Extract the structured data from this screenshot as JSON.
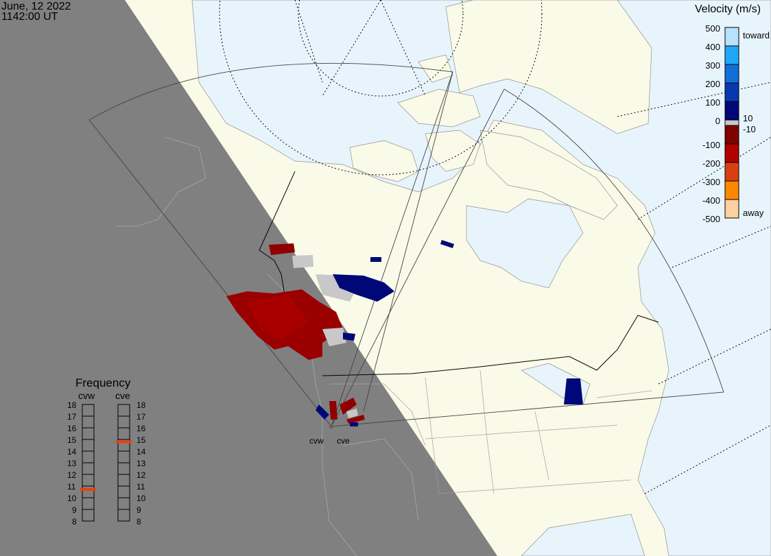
{
  "header": {
    "date": "June, 12 2022",
    "time": "1142:00 UT"
  },
  "colorbar": {
    "title": "Velocity (m/s)",
    "ticks": [
      "500",
      "400",
      "300",
      "200",
      "100",
      "0",
      "-100",
      "-200",
      "-300",
      "-400",
      "-500"
    ],
    "toward_label": "toward",
    "away_label": "away",
    "ground_scatter_upper": "10",
    "ground_scatter_lower": "-10",
    "colors_toward": [
      "#b8e2fc",
      "#20a8f8",
      "#1070d8",
      "#0838b0",
      "#000878"
    ],
    "ground_scatter_color": "#c8c8c8",
    "colors_away": [
      "#800000",
      "#b00000",
      "#d84010",
      "#fc8800",
      "#fcd0a0"
    ]
  },
  "frequency": {
    "title": "Frequency",
    "unit_scale": [
      "18",
      "17",
      "16",
      "15",
      "14",
      "13",
      "12",
      "11",
      "10",
      "9",
      "8"
    ],
    "radars": [
      {
        "name": "cvw",
        "value_mhz": 10.7
      },
      {
        "name": "cve",
        "value_mhz": 14.8
      }
    ],
    "marker_color": "#f04010"
  },
  "radar_sites": [
    "cvw",
    "cve"
  ],
  "colors": {
    "ocean": "#e8f4fc",
    "land": "#fafae8",
    "night": "#808080"
  }
}
